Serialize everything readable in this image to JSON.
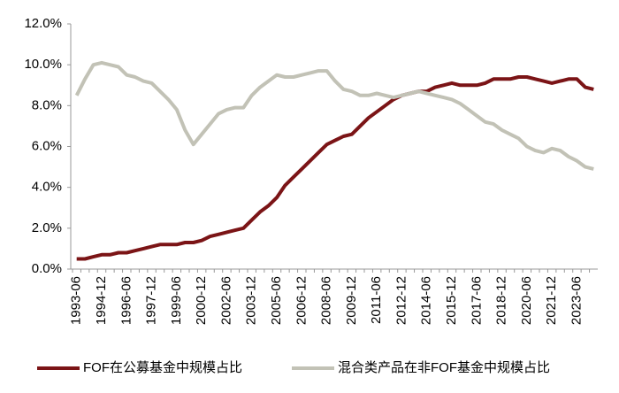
{
  "chart_data": {
    "type": "line",
    "categories": [
      "1993-06",
      null,
      null,
      "1994-12",
      null,
      null,
      "1996-06",
      null,
      null,
      "1997-12",
      null,
      null,
      "1999-06",
      null,
      null,
      "2000-12",
      null,
      null,
      "2002-06",
      null,
      null,
      "2003-12",
      null,
      null,
      "2005-06",
      null,
      null,
      "2006-12",
      null,
      null,
      "2008-06",
      null,
      null,
      "2009-12",
      null,
      null,
      "2011-06",
      null,
      null,
      "2012-12",
      null,
      null,
      "2014-06",
      null,
      null,
      "2015-12",
      null,
      null,
      "2017-06",
      null,
      null,
      "2018-12",
      null,
      null,
      "2020-06",
      null,
      null,
      "2021-12",
      null,
      null,
      "2023-06",
      null,
      null
    ],
    "series": [
      {
        "name": "FOF在公募基金中规模占比",
        "color": "#7b1416",
        "values": [
          0.5,
          0.5,
          0.6,
          0.7,
          0.7,
          0.8,
          0.8,
          0.9,
          1.0,
          1.1,
          1.2,
          1.2,
          1.2,
          1.3,
          1.3,
          1.4,
          1.6,
          1.7,
          1.8,
          1.9,
          2.0,
          2.4,
          2.8,
          3.1,
          3.5,
          4.1,
          4.5,
          4.9,
          5.3,
          5.7,
          6.1,
          6.3,
          6.5,
          6.6,
          7.0,
          7.4,
          7.7,
          8.0,
          8.3,
          8.5,
          8.6,
          8.7,
          8.7,
          8.9,
          9.0,
          9.1,
          9.0,
          9.0,
          9.0,
          9.1,
          9.3,
          9.3,
          9.3,
          9.4,
          9.4,
          9.3,
          9.2,
          9.1,
          9.2,
          9.3,
          9.3,
          8.9,
          8.8
        ]
      },
      {
        "name": "混合类产品在非FOF基金中规模占比",
        "color": "#c2c2b6",
        "values": [
          8.5,
          9.3,
          10.0,
          10.1,
          10.0,
          9.9,
          9.5,
          9.4,
          9.2,
          9.1,
          8.7,
          8.3,
          7.8,
          6.8,
          6.1,
          6.6,
          7.1,
          7.6,
          7.8,
          7.9,
          7.9,
          8.5,
          8.9,
          9.2,
          9.5,
          9.4,
          9.4,
          9.5,
          9.6,
          9.7,
          9.7,
          9.2,
          8.8,
          8.7,
          8.5,
          8.5,
          8.6,
          8.5,
          8.4,
          8.5,
          8.6,
          8.7,
          8.6,
          8.5,
          8.4,
          8.3,
          8.1,
          7.8,
          7.5,
          7.2,
          7.1,
          6.8,
          6.6,
          6.4,
          6.0,
          5.8,
          5.7,
          5.9,
          5.8,
          5.5,
          5.3,
          5.0,
          4.9
        ]
      }
    ],
    "ylim": [
      0,
      12
    ],
    "yticks": [
      {
        "value": 0,
        "label": "0.0%"
      },
      {
        "value": 2,
        "label": "2.0%"
      },
      {
        "value": 4,
        "label": "4.0%"
      },
      {
        "value": 6,
        "label": "6.0%"
      },
      {
        "value": 8,
        "label": "8.0%"
      },
      {
        "value": 10,
        "label": "10.0%"
      },
      {
        "value": 12,
        "label": "12.0%"
      }
    ],
    "grid": false,
    "legend": "bottom"
  }
}
